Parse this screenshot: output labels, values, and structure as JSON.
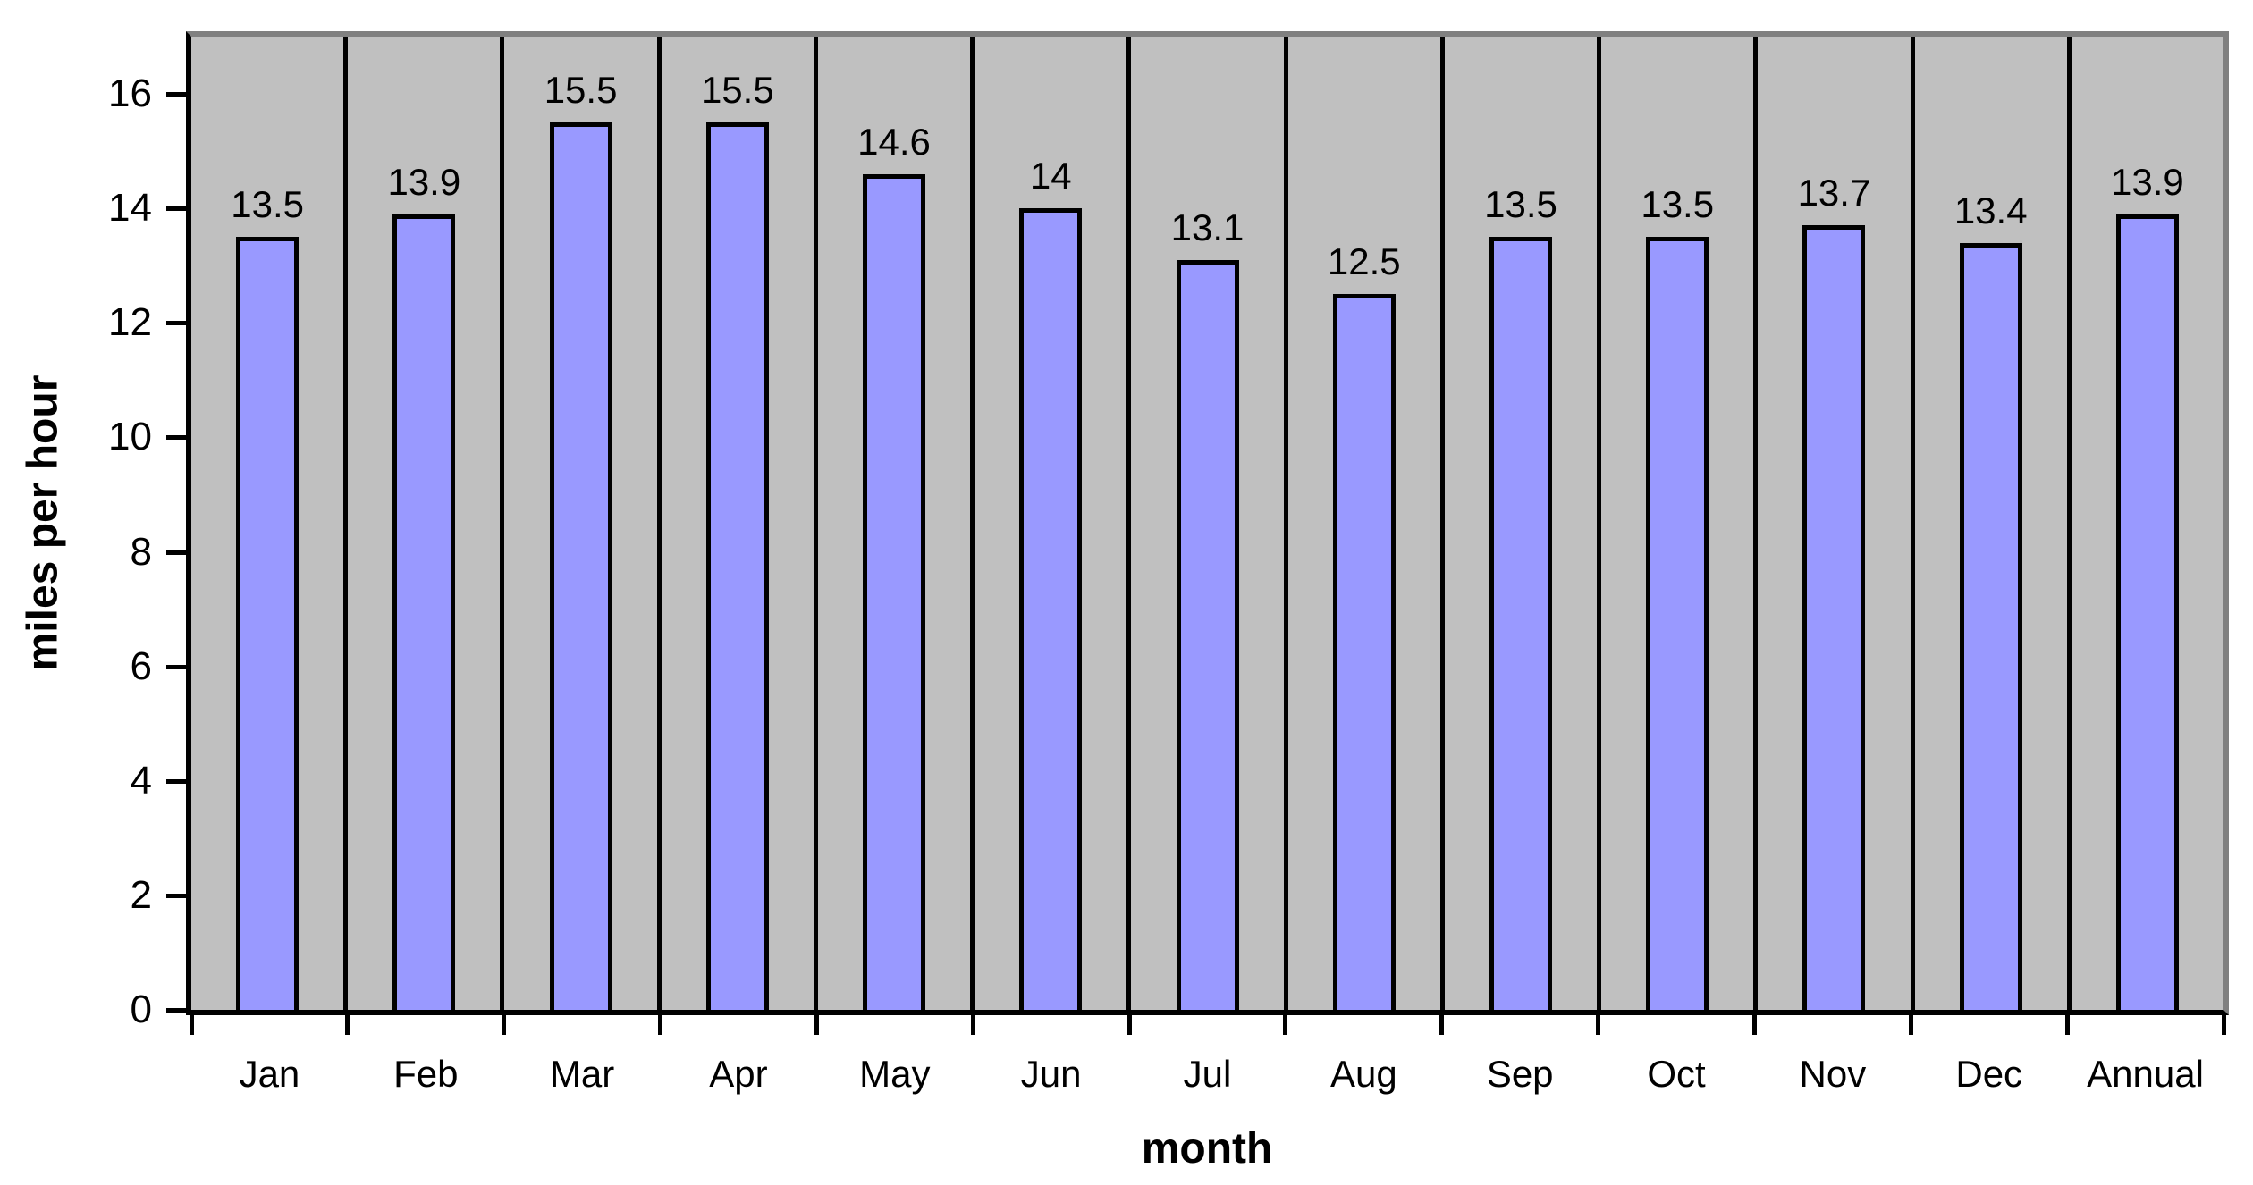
{
  "chart_data": {
    "type": "bar",
    "title": "",
    "xlabel": "month",
    "ylabel": "miles per hour",
    "categories": [
      "Jan",
      "Feb",
      "Mar",
      "Apr",
      "May",
      "Jun",
      "Jul",
      "Aug",
      "Sep",
      "Oct",
      "Nov",
      "Dec",
      "Annual"
    ],
    "values": [
      13.5,
      13.9,
      15.5,
      15.5,
      14.6,
      14,
      13.1,
      12.5,
      13.5,
      13.5,
      13.7,
      13.4,
      13.9
    ],
    "data_labels": [
      "13.5",
      "13.9",
      "15.5",
      "15.5",
      "14.6",
      "14",
      "13.1",
      "12.5",
      "13.5",
      "13.5",
      "13.7",
      "13.4",
      "13.9"
    ],
    "ylim": [
      0,
      17
    ],
    "yticks": [
      0,
      2,
      4,
      6,
      8,
      10,
      12,
      14,
      16
    ],
    "grid": "vertical-category-dividers",
    "legend": "none",
    "colors": {
      "bar_fill": "#9999FF",
      "bar_border": "#000000",
      "plot_background": "#C0C0C0",
      "plot_outer_border": "#808080",
      "axis_line": "#000000",
      "text": "#000000",
      "page_background": "#FFFFFF"
    }
  }
}
